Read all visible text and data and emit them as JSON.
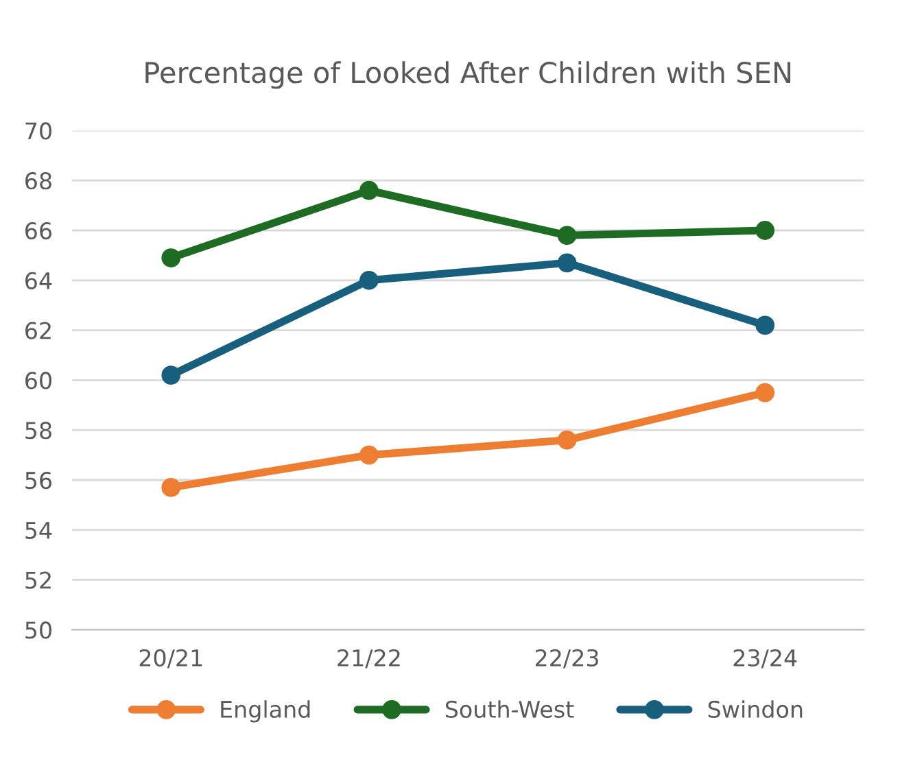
{
  "chart_data": {
    "type": "line",
    "title": "Percentage of Looked After Children with SEN",
    "categories": [
      "20/21",
      "21/22",
      "22/23",
      "23/24"
    ],
    "series": [
      {
        "name": "England",
        "color": "#ed7d31",
        "values": [
          55.7,
          57.0,
          57.6,
          59.5
        ]
      },
      {
        "name": "South-West",
        "color": "#1e6b24",
        "values": [
          64.9,
          67.6,
          65.8,
          66.0
        ]
      },
      {
        "name": "Swindon",
        "color": "#185f7e",
        "values": [
          60.2,
          64.0,
          64.7,
          62.2
        ]
      }
    ],
    "ylim": [
      50,
      70
    ],
    "yticks": [
      50,
      52,
      54,
      56,
      58,
      60,
      62,
      64,
      66,
      68,
      70
    ],
    "grid": "y",
    "legend": "bottom",
    "marker": "circle",
    "line_style": "solid"
  }
}
